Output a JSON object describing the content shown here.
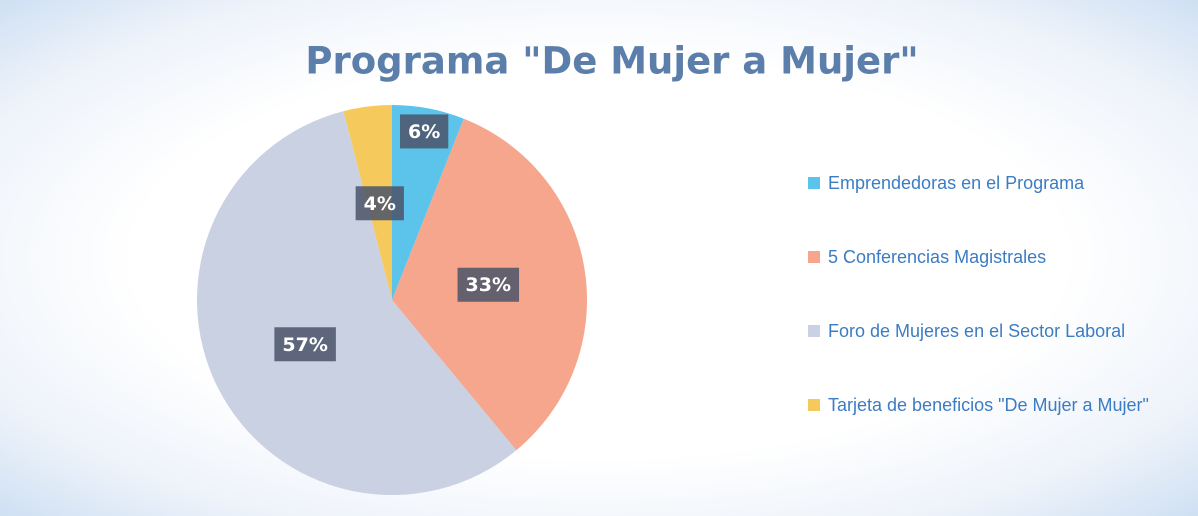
{
  "chart_data": {
    "type": "pie",
    "title": "Programa \"De Mujer a Mujer\"",
    "categories": [
      "Emprendedoras en el Programa",
      "5 Conferencias Magistrales",
      "Foro de Mujeres en el Sector Laboral",
      "Tarjeta de beneficios \"De Mujer a Mujer\""
    ],
    "values": [
      6,
      33,
      57,
      4
    ],
    "value_labels": [
      "6%",
      "33%",
      "57%",
      "4%"
    ],
    "colors": [
      "#5cc3ea",
      "#f5a68c",
      "#c9d1e2",
      "#f6c95c"
    ],
    "legend": "right"
  }
}
